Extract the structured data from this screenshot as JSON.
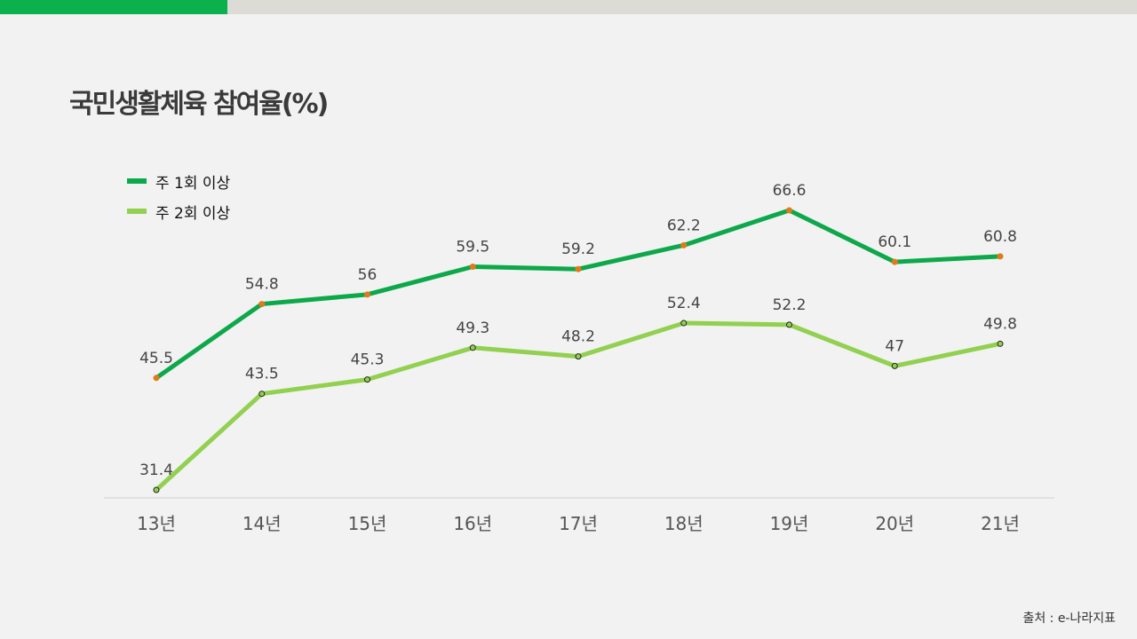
{
  "header": {
    "title": "국민생활체육 참여율(%)"
  },
  "colors": {
    "accent": "#0cb04d",
    "topbar": "#dcdbd6",
    "series1": "#0da84a",
    "series2": "#92d050",
    "marker1": "#e07a1a",
    "marker2": "#222222"
  },
  "source": "출처 : e-나라지표",
  "chart_data": {
    "type": "line",
    "title": "국민생활체육 참여율(%)",
    "categories": [
      "13년",
      "14년",
      "15년",
      "16년",
      "17년",
      "18년",
      "19년",
      "20년",
      "21년"
    ],
    "series": [
      {
        "name": "주 1회 이상",
        "values": [
          45.5,
          54.8,
          56,
          59.5,
          59.2,
          62.2,
          66.6,
          60.1,
          60.8
        ]
      },
      {
        "name": "주 2회 이상",
        "values": [
          31.4,
          43.5,
          45.3,
          49.3,
          48.2,
          52.4,
          52.2,
          47,
          49.8
        ]
      }
    ],
    "xlabel": "",
    "ylabel": "",
    "legend": "top-left",
    "grid": false
  }
}
